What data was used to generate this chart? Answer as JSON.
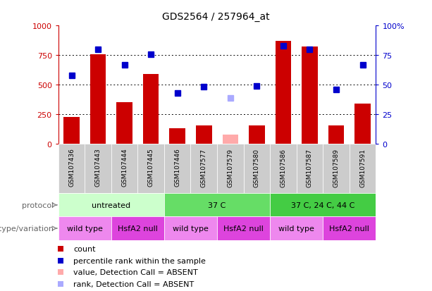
{
  "title": "GDS2564 / 257964_at",
  "samples": [
    "GSM107436",
    "GSM107443",
    "GSM107444",
    "GSM107445",
    "GSM107446",
    "GSM107577",
    "GSM107579",
    "GSM107580",
    "GSM107586",
    "GSM107587",
    "GSM107589",
    "GSM107591"
  ],
  "bar_values": [
    225,
    760,
    350,
    590,
    130,
    155,
    80,
    155,
    870,
    820,
    155,
    340
  ],
  "bar_absent": [
    false,
    false,
    false,
    false,
    false,
    false,
    true,
    false,
    false,
    false,
    false,
    false
  ],
  "rank_values": [
    58,
    80,
    67,
    76,
    43,
    48,
    39,
    49,
    83,
    80,
    46,
    67
  ],
  "rank_absent": [
    false,
    false,
    false,
    false,
    false,
    false,
    true,
    false,
    false,
    false,
    false,
    false
  ],
  "bar_color": "#cc0000",
  "bar_absent_color": "#ffaaaa",
  "rank_color": "#0000cc",
  "rank_absent_color": "#aaaaff",
  "ylim_left": [
    0,
    1000
  ],
  "ylim_right": [
    0,
    100
  ],
  "yticks_left": [
    0,
    250,
    500,
    750,
    1000
  ],
  "yticks_right": [
    0,
    25,
    50,
    75,
    100
  ],
  "ytick_labels_left": [
    "0",
    "250",
    "500",
    "750",
    "1000"
  ],
  "ytick_labels_right": [
    "0",
    "25",
    "50",
    "75",
    "100%"
  ],
  "grid_values": [
    250,
    500,
    750
  ],
  "protocol_groups": [
    {
      "label": "untreated",
      "start": 0,
      "end": 4,
      "color": "#ccffcc"
    },
    {
      "label": "37 C",
      "start": 4,
      "end": 8,
      "color": "#66dd66"
    },
    {
      "label": "37 C, 24 C, 44 C",
      "start": 8,
      "end": 12,
      "color": "#44cc44"
    }
  ],
  "genotype_groups": [
    {
      "label": "wild type",
      "start": 0,
      "end": 2,
      "color": "#ee88ee"
    },
    {
      "label": "HsfA2 null",
      "start": 2,
      "end": 4,
      "color": "#dd44dd"
    },
    {
      "label": "wild type",
      "start": 4,
      "end": 6,
      "color": "#ee88ee"
    },
    {
      "label": "HsfA2 null",
      "start": 6,
      "end": 8,
      "color": "#dd44dd"
    },
    {
      "label": "wild type",
      "start": 8,
      "end": 10,
      "color": "#ee88ee"
    },
    {
      "label": "HsfA2 null",
      "start": 10,
      "end": 12,
      "color": "#dd44dd"
    }
  ],
  "protocol_label": "protocol",
  "genotype_label": "genotype/variation",
  "legend_items": [
    {
      "label": "count",
      "color": "#cc0000"
    },
    {
      "label": "percentile rank within the sample",
      "color": "#0000cc"
    },
    {
      "label": "value, Detection Call = ABSENT",
      "color": "#ffaaaa"
    },
    {
      "label": "rank, Detection Call = ABSENT",
      "color": "#aaaaff"
    }
  ],
  "sample_bg_color": "#cccccc",
  "right_ytick_labels": [
    "0",
    "25",
    "50",
    "75",
    "100%"
  ]
}
